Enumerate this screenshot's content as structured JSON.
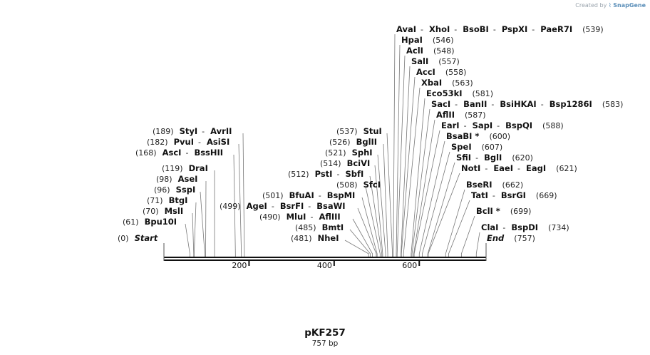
{
  "credit": {
    "prefix": "Created by",
    "brand": "SnapGene"
  },
  "plasmid": {
    "name": "pKF257",
    "length_label": "757 bp"
  },
  "map": {
    "length_bp": 757,
    "scale_ticks": [
      {
        "value": 200,
        "label": "200"
      },
      {
        "value": 400,
        "label": "400"
      },
      {
        "value": 600,
        "label": "600"
      }
    ],
    "left_labels": [
      {
        "pos": 189,
        "pos_label": "(189)",
        "enzymes": [
          "StyI",
          "AvrII"
        ]
      },
      {
        "pos": 182,
        "pos_label": "(182)",
        "enzymes": [
          "PvuI",
          "AsiSI"
        ]
      },
      {
        "pos": 168,
        "pos_label": "(168)",
        "enzymes": [
          "AscI",
          "BssHII"
        ]
      },
      {
        "pos": 119,
        "pos_label": "(119)",
        "enzymes": [
          "DraI"
        ]
      },
      {
        "pos": 98,
        "pos_label": "(98)",
        "enzymes": [
          "AseI"
        ]
      },
      {
        "pos": 96,
        "pos_label": "(96)",
        "enzymes": [
          "SspI"
        ]
      },
      {
        "pos": 71,
        "pos_label": "(71)",
        "enzymes": [
          "BtgI"
        ]
      },
      {
        "pos": 70,
        "pos_label": "(70)",
        "enzymes": [
          "MslI"
        ]
      },
      {
        "pos": 61,
        "pos_label": "(61)",
        "enzymes": [
          "Bpu10I"
        ]
      },
      {
        "pos": 0,
        "pos_label": "(0)",
        "enzymes": [
          "Start"
        ],
        "italic": true
      }
    ],
    "mid_labels": [
      {
        "pos": 537,
        "pos_label": "(537)",
        "enzymes": [
          "StuI"
        ]
      },
      {
        "pos": 526,
        "pos_label": "(526)",
        "enzymes": [
          "BglII"
        ]
      },
      {
        "pos": 521,
        "pos_label": "(521)",
        "enzymes": [
          "SphI"
        ]
      },
      {
        "pos": 514,
        "pos_label": "(514)",
        "enzymes": [
          "BciVI"
        ]
      },
      {
        "pos": 512,
        "pos_label": "(512)",
        "enzymes": [
          "PstI",
          "SbfI"
        ]
      },
      {
        "pos": 508,
        "pos_label": "(508)",
        "enzymes": [
          "SfcI"
        ]
      },
      {
        "pos": 501,
        "pos_label": "(501)",
        "enzymes": [
          "BfuAI",
          "BspMI"
        ]
      },
      {
        "pos": 499,
        "pos_label": "(499)",
        "enzymes": [
          "AgeI",
          "BsrFI",
          "BsaWI"
        ]
      },
      {
        "pos": 490,
        "pos_label": "(490)",
        "enzymes": [
          "MluI",
          "AflIII"
        ]
      },
      {
        "pos": 485,
        "pos_label": "(485)",
        "enzymes": [
          "BmtI"
        ]
      },
      {
        "pos": 481,
        "pos_label": "(481)",
        "enzymes": [
          "NheI"
        ]
      }
    ],
    "right_labels": [
      {
        "pos": 539,
        "pos_label": "(539)",
        "enzymes": [
          "AvaI",
          "XhoI",
          "BsoBI",
          "PspXI",
          "PaeR7I"
        ]
      },
      {
        "pos": 546,
        "pos_label": "(546)",
        "enzymes": [
          "HpaI"
        ]
      },
      {
        "pos": 548,
        "pos_label": "(548)",
        "enzymes": [
          "AclI"
        ]
      },
      {
        "pos": 557,
        "pos_label": "(557)",
        "enzymes": [
          "SalI"
        ]
      },
      {
        "pos": 558,
        "pos_label": "(558)",
        "enzymes": [
          "AccI"
        ]
      },
      {
        "pos": 563,
        "pos_label": "(563)",
        "enzymes": [
          "XbaI"
        ]
      },
      {
        "pos": 581,
        "pos_label": "(581)",
        "enzymes": [
          "Eco53kI"
        ]
      },
      {
        "pos": 583,
        "pos_label": "(583)",
        "enzymes": [
          "SacI",
          "BanII",
          "BsiHKAI",
          "Bsp1286I"
        ]
      },
      {
        "pos": 587,
        "pos_label": "(587)",
        "enzymes": [
          "AflII"
        ]
      },
      {
        "pos": 588,
        "pos_label": "(588)",
        "enzymes": [
          "EarI",
          "SapI",
          "BspQI"
        ]
      },
      {
        "pos": 600,
        "pos_label": "(600)",
        "enzymes": [
          "BsaBI *"
        ]
      },
      {
        "pos": 607,
        "pos_label": "(607)",
        "enzymes": [
          "SpeI"
        ]
      },
      {
        "pos": 620,
        "pos_label": "(620)",
        "enzymes": [
          "SfiI",
          "BglI"
        ]
      },
      {
        "pos": 621,
        "pos_label": "(621)",
        "enzymes": [
          "NotI",
          "EaeI",
          "EagI"
        ]
      },
      {
        "pos": 662,
        "pos_label": "(662)",
        "enzymes": [
          "BseRI"
        ]
      },
      {
        "pos": 669,
        "pos_label": "(669)",
        "enzymes": [
          "TatI",
          "BsrGI"
        ]
      },
      {
        "pos": 699,
        "pos_label": "(699)",
        "enzymes": [
          "BclI *"
        ]
      },
      {
        "pos": 734,
        "pos_label": "(734)",
        "enzymes": [
          "ClaI",
          "BspDI"
        ]
      },
      {
        "pos": 757,
        "pos_label": "(757)",
        "enzymes": [
          "End"
        ],
        "italic": true
      }
    ]
  }
}
